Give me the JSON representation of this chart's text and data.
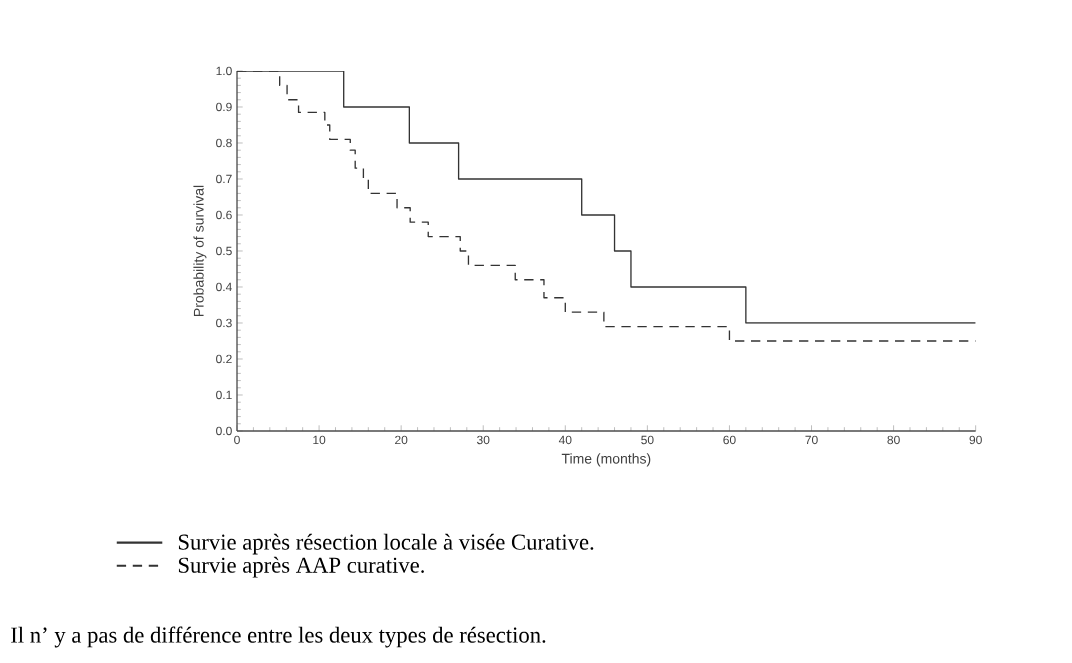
{
  "chart_data": {
    "type": "step",
    "xlabel": "Time (months)",
    "ylabel": "Probability of survival",
    "series": [
      {
        "name": "Survie après résection locale à visée Curative.",
        "color": "#333333",
        "line_style": "solid",
        "x": [
          0,
          13,
          21,
          27,
          42,
          46,
          48,
          62,
          90
        ],
        "values": [
          1.0,
          0.9,
          0.8,
          0.7,
          0.6,
          0.5,
          0.4,
          0.3,
          0.3
        ]
      },
      {
        "name": "Survie après AAP curative.",
        "color": "#333333",
        "line_style": "dashed",
        "x": [
          0,
          5.2,
          6.1,
          7.5,
          10.7,
          11.3,
          13.8,
          14.4,
          15.4,
          16.0,
          19.5,
          21.1,
          23.3,
          27.2,
          28.2,
          33.9,
          37.4,
          40.0,
          44.7,
          60.0,
          90
        ],
        "values": [
          1.0,
          0.96,
          0.92,
          0.885,
          0.85,
          0.81,
          0.78,
          0.73,
          0.7,
          0.66,
          0.62,
          0.58,
          0.54,
          0.5,
          0.46,
          0.42,
          0.37,
          0.33,
          0.29,
          0.25,
          0.25
        ]
      }
    ],
    "xlim": [
      0,
      90
    ],
    "xticks": [
      0,
      10,
      20,
      30,
      40,
      50,
      60,
      70,
      80,
      90
    ],
    "ylim": [
      0,
      1
    ],
    "yticks": [
      {
        "value": 0,
        "label": "0.0"
      },
      {
        "value": 0.1,
        "label": "0.1"
      },
      {
        "value": 0.2,
        "label": "0.2"
      },
      {
        "value": 0.3,
        "label": "0.3"
      },
      {
        "value": 0.4,
        "label": "0.4"
      },
      {
        "value": 0.5,
        "label": "0.5"
      },
      {
        "value": 0.6,
        "label": "0.6"
      },
      {
        "value": 0.7,
        "label": "0.7"
      },
      {
        "value": 0.8,
        "label": "0.8"
      },
      {
        "value": 0.9,
        "label": "0.9"
      },
      {
        "value": 1,
        "label": "1.0"
      }
    ],
    "legend": "bottom",
    "annotations": [
      "Il n’ y a pas de différence entre les deux types de résection."
    ]
  }
}
